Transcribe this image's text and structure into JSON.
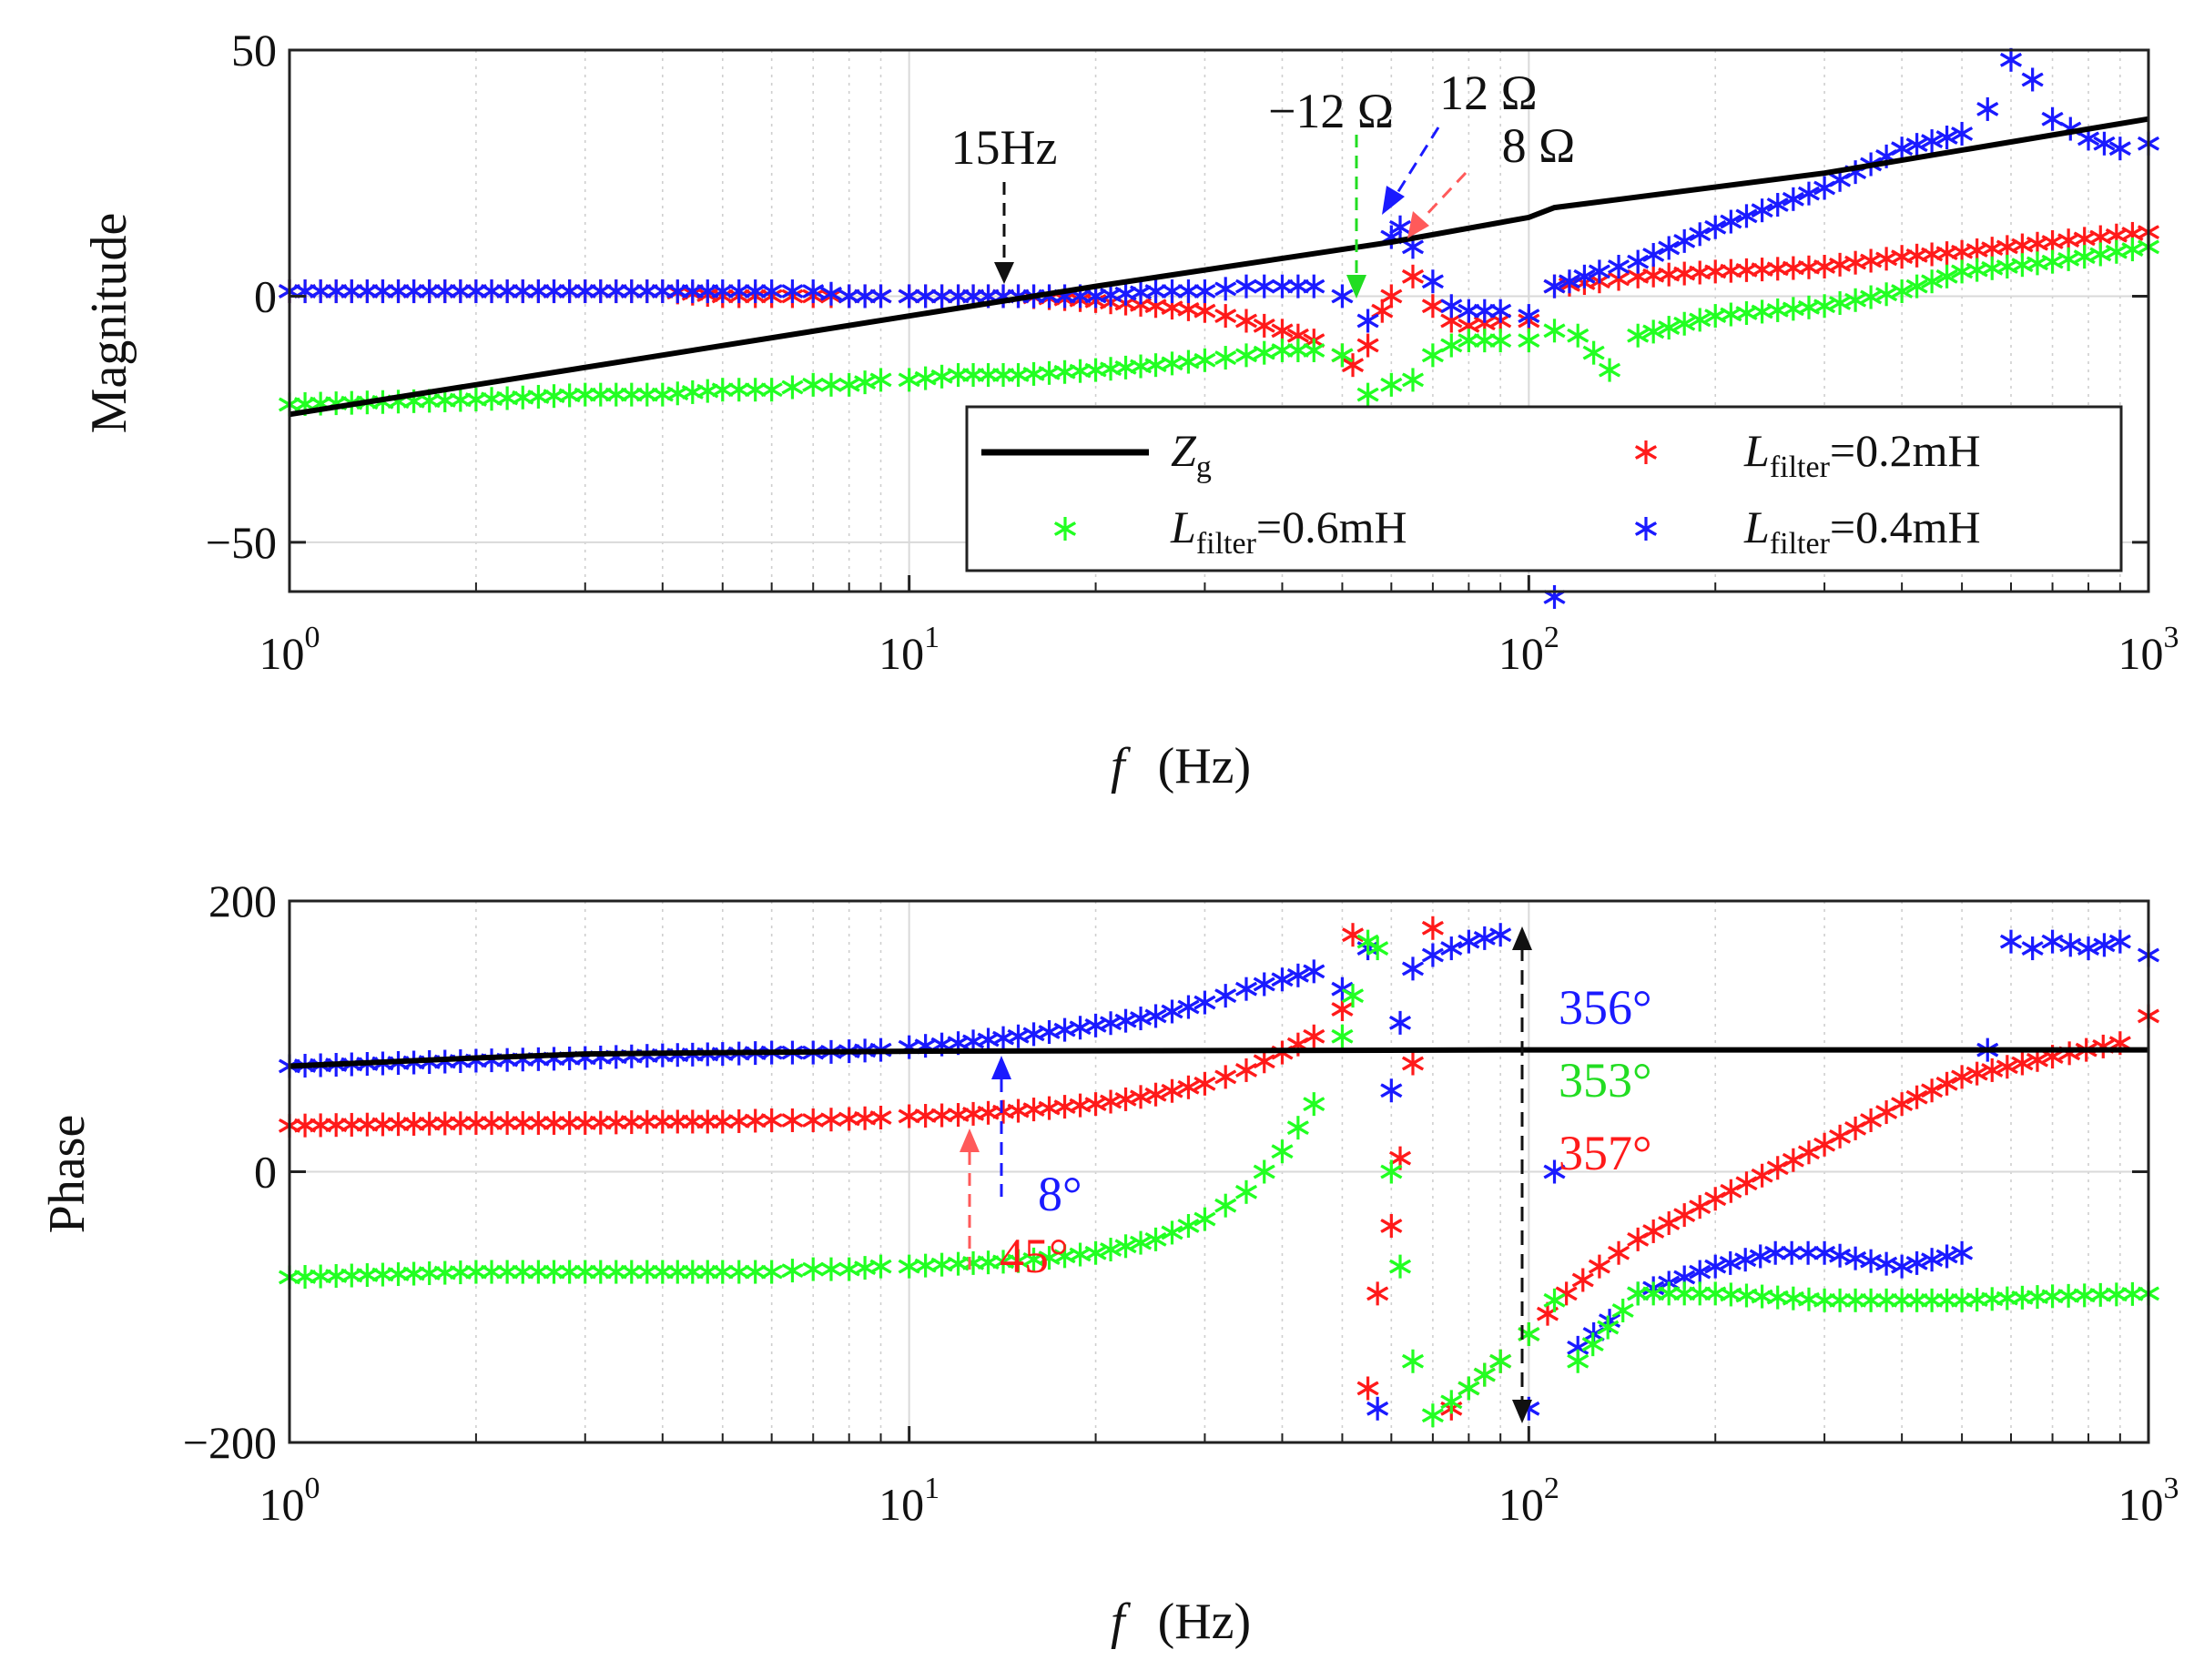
{
  "colors": {
    "zg": "#000000",
    "l02": "#ff1a1a",
    "l04": "#1a1aff",
    "l06": "#22ff22",
    "guide_red": "#ff5a5a",
    "guide_green": "#22dd22"
  },
  "chart_data": [
    {
      "type": "scatter",
      "id": "magnitude",
      "ylabel": "Magnitude",
      "xlabel_italic": "f",
      "xlabel_unit": "(Hz)",
      "xscale": "log",
      "xlim": [
        1,
        1000
      ],
      "ylim": [
        -60,
        50
      ],
      "yticks": [
        "50",
        "0",
        "−50"
      ],
      "ytick_values": [
        50,
        0,
        -50
      ],
      "xtick_bases": [
        "10",
        "10",
        "10",
        "10"
      ],
      "xtick_exps": [
        "0",
        "1",
        "2",
        "3"
      ],
      "grid": true,
      "legend_position": "lower-right",
      "legend": {
        "zg": "Z",
        "zg_sub": "g",
        "l02": "L",
        "l02_sub": "filter",
        "l02_val": "=0.2mH",
        "l06": "L",
        "l06_sub": "filter",
        "l06_val": "=0.6mH",
        "l04": "L",
        "l04_sub": "filter",
        "l04_val": "=0.4mH"
      },
      "series": [
        {
          "name": "Z_g",
          "style": "line",
          "x": [
            1,
            20,
            60,
            100,
            110,
            300,
            1000
          ],
          "y": [
            -24,
            2,
            11,
            16,
            18,
            25,
            36
          ]
        },
        {
          "name": "L_filter=0.2mH",
          "style": "star",
          "x": [
            1,
            2,
            3,
            4,
            5,
            6,
            7,
            8,
            9,
            10,
            12,
            15,
            20,
            25,
            30,
            35,
            40,
            45,
            50,
            52,
            55,
            58,
            60,
            65,
            70,
            75,
            80,
            90,
            100,
            110,
            130,
            150,
            200,
            300,
            400,
            500,
            700,
            1000
          ],
          "y": [
            1,
            1,
            1,
            1,
            0,
            0,
            0,
            0,
            0,
            0,
            0,
            0,
            -1,
            -2,
            -3,
            -5,
            -7,
            -9,
            -12,
            -14,
            -10,
            -3,
            0,
            4,
            -2,
            -5,
            -6,
            -5,
            -5,
            2,
            3,
            4,
            5,
            6,
            8,
            9,
            11,
            13
          ]
        },
        {
          "name": "L_filter=0.4mH",
          "style": "star",
          "x": [
            1,
            2,
            3,
            4,
            5,
            6,
            7,
            8,
            9,
            10,
            12,
            15,
            20,
            25,
            30,
            35,
            40,
            45,
            50,
            55,
            60,
            62,
            65,
            70,
            75,
            80,
            90,
            100,
            110,
            130,
            150,
            200,
            300,
            400,
            500,
            550,
            600,
            650,
            700,
            800,
            900,
            1000
          ],
          "y": [
            1,
            1,
            1,
            1,
            1,
            1,
            1,
            0,
            0,
            0,
            0,
            0,
            0,
            1,
            1,
            2,
            2,
            2,
            0,
            -5,
            12,
            14,
            10,
            3,
            -2,
            -3,
            -3,
            -4,
            2,
            5,
            7,
            14,
            22,
            30,
            33,
            38,
            48,
            44,
            36,
            32,
            30,
            31
          ]
        },
        {
          "name": "L_filter=0.6mH",
          "style": "star",
          "x": [
            1,
            2,
            3,
            4,
            5,
            6,
            7,
            8,
            9,
            10,
            12,
            15,
            20,
            25,
            30,
            35,
            40,
            45,
            50,
            55,
            60,
            65,
            70,
            75,
            80,
            90,
            100,
            110,
            120,
            135,
            150,
            200,
            300,
            400,
            500,
            700,
            1000
          ],
          "y": [
            -22,
            -21,
            -20,
            -20,
            -19,
            -19,
            -18,
            -18,
            -17,
            -17,
            -16,
            -16,
            -15,
            -14,
            -13,
            -12,
            -11,
            -11,
            -12,
            -20,
            -18,
            -17,
            -12,
            -10,
            -9,
            -9,
            -9,
            -7,
            -8,
            -15,
            -8,
            -4,
            -2,
            1,
            5,
            7,
            10
          ]
        }
      ],
      "annotations": {
        "hz15": "15Hz",
        "om12neg": "−12 Ω",
        "om12": "12 Ω",
        "om8": "8 Ω"
      },
      "stray_points": [
        {
          "x": 110,
          "y": -60,
          "series": "L_filter=0.4mH"
        }
      ]
    },
    {
      "type": "scatter",
      "id": "phase",
      "ylabel": "Phase",
      "xlabel_italic": "f",
      "xlabel_unit": "(Hz)",
      "xscale": "log",
      "xlim": [
        1,
        1000
      ],
      "ylim": [
        -200,
        200
      ],
      "yticks": [
        "200",
        "0",
        "−200"
      ],
      "ytick_values": [
        200,
        0,
        -200
      ],
      "xtick_bases": [
        "10",
        "10",
        "10",
        "10"
      ],
      "xtick_exps": [
        "0",
        "1",
        "2",
        "3"
      ],
      "grid": true,
      "series": [
        {
          "name": "Z_g",
          "style": "line",
          "x": [
            1,
            2,
            3,
            5,
            10,
            100,
            1000
          ],
          "y": [
            78,
            84,
            87,
            88,
            89,
            90,
            90
          ]
        },
        {
          "name": "L_filter=0.2mH",
          "style": "star",
          "x": [
            1,
            2,
            3,
            4,
            5,
            6,
            7,
            8,
            9,
            10,
            12,
            15,
            20,
            25,
            30,
            35,
            40,
            45,
            50,
            52,
            55,
            57,
            60,
            62,
            65,
            70,
            75,
            80,
            90,
            100,
            115,
            130,
            150,
            200,
            300,
            400,
            500,
            700,
            900,
            1000
          ],
          "y": [
            34,
            36,
            36,
            37,
            37,
            38,
            38,
            39,
            40,
            41,
            42,
            45,
            50,
            57,
            65,
            75,
            88,
            100,
            120,
            175,
            -160,
            -90,
            -40,
            10,
            80,
            180,
            -175,
            -160,
            -140,
            -120,
            -90,
            -70,
            -50,
            -20,
            20,
            50,
            70,
            85,
            95,
            115
          ]
        },
        {
          "name": "L_filter=0.4mH",
          "style": "star",
          "x": [
            1,
            2,
            3,
            4,
            5,
            6,
            7,
            8,
            9,
            10,
            12,
            15,
            20,
            25,
            30,
            35,
            40,
            45,
            50,
            55,
            57,
            60,
            62,
            65,
            70,
            75,
            80,
            90,
            100,
            110,
            120,
            135,
            150,
            200,
            250,
            300,
            400,
            500,
            550,
            600,
            650,
            700,
            800,
            900,
            1000
          ],
          "y": [
            78,
            82,
            84,
            86,
            87,
            88,
            88,
            89,
            90,
            92,
            95,
            100,
            108,
            115,
            125,
            135,
            142,
            148,
            135,
            165,
            -175,
            60,
            110,
            150,
            160,
            165,
            170,
            175,
            -175,
            0,
            -130,
            -110,
            -90,
            -70,
            -60,
            -60,
            -70,
            -60,
            90,
            170,
            165,
            170,
            165,
            170,
            160
          ]
        },
        {
          "name": "L_filter=0.6mH",
          "style": "star",
          "x": [
            1,
            2,
            3,
            4,
            5,
            6,
            7,
            8,
            9,
            10,
            12,
            15,
            20,
            25,
            30,
            35,
            40,
            45,
            50,
            52,
            55,
            57,
            60,
            62,
            65,
            70,
            75,
            80,
            90,
            100,
            110,
            120,
            150,
            200,
            300,
            400,
            500,
            700,
            1000
          ],
          "y": [
            -78,
            -74,
            -74,
            -74,
            -74,
            -74,
            -72,
            -72,
            -70,
            -70,
            -68,
            -66,
            -60,
            -50,
            -35,
            -15,
            15,
            50,
            100,
            130,
            170,
            165,
            0,
            -70,
            -140,
            -180,
            -170,
            -160,
            -140,
            -120,
            -95,
            -140,
            -90,
            -90,
            -95,
            -95,
            -95,
            -92,
            -90
          ]
        }
      ],
      "annotations": {
        "deg356": "356°",
        "deg353": "353°",
        "deg357": "357°",
        "deg8": "8°",
        "deg45": "45°"
      }
    }
  ]
}
